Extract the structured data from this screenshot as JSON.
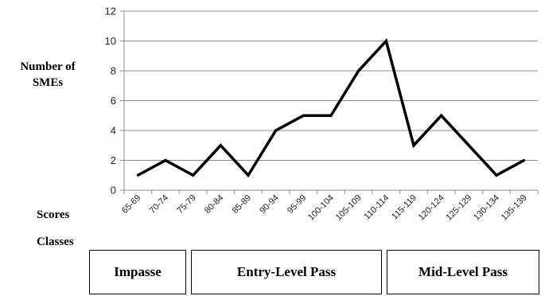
{
  "chart_data": {
    "type": "line",
    "ylabel_lines": [
      "Number of",
      "SMEs"
    ],
    "xlabel": "Scores",
    "categories": [
      "65-69",
      "70-74",
      "75-79",
      "80-84",
      "85-89",
      "90-94",
      "95-99",
      "100-104",
      "105-109",
      "110-114",
      "115-119",
      "120-124",
      "125-129",
      "130-134",
      "135-139"
    ],
    "values": [
      1,
      2,
      1,
      3,
      1,
      4,
      5,
      5,
      8,
      10,
      3,
      5,
      3,
      1,
      2
    ],
    "ylim": [
      0,
      12
    ],
    "yticks": [
      0,
      2,
      4,
      6,
      8,
      10,
      12
    ],
    "grid": true,
    "line_color": "#000000"
  },
  "classes": {
    "label": "Classes",
    "groups": [
      {
        "label": "Impasse"
      },
      {
        "label": "Entry-Level Pass"
      },
      {
        "label": "Mid-Level Pass"
      }
    ]
  }
}
